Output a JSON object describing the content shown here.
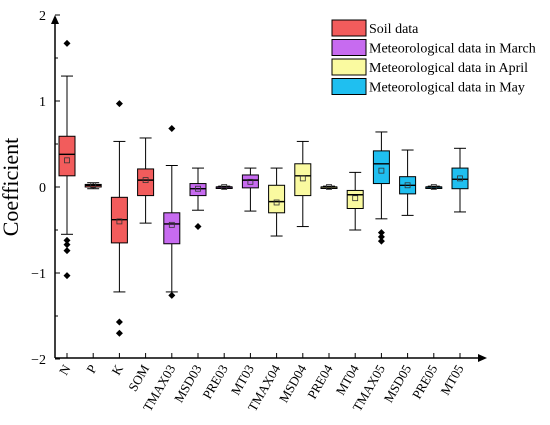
{
  "chart_data": {
    "type": "boxplot",
    "ylabel": "Coefficient",
    "xlabel": "",
    "ylim": [
      -2,
      2
    ],
    "yticks": [
      -2,
      -1,
      0,
      1,
      2
    ],
    "grid": false,
    "legend_position": "top-right",
    "legend": [
      {
        "label": "Soil data",
        "color": "#f25c5c"
      },
      {
        "label": "Meteorological data in March",
        "color": "#c76bf0"
      },
      {
        "label": "Meteorological data in April",
        "color": "#fafaa0"
      },
      {
        "label": "Meteorological data in May",
        "color": "#1fbff0"
      }
    ],
    "categories": [
      "N",
      "P",
      "K",
      "SOM",
      "TMAX03",
      "MSD03",
      "PRE03",
      "MT03",
      "TMAX04",
      "MSD04",
      "PRE04",
      "MT04",
      "TMAX05",
      "MSD05",
      "PRE05",
      "MT05"
    ],
    "boxes": [
      {
        "category": "N",
        "group": 0,
        "whisker_low": -0.55,
        "q1": 0.13,
        "median": 0.38,
        "q3": 0.59,
        "whisker_high": 1.29,
        "mean": 0.31,
        "outliers": [
          1.67,
          -0.62,
          -0.67,
          -0.74,
          -1.03
        ]
      },
      {
        "category": "P",
        "group": 0,
        "whisker_low": -0.02,
        "q1": 0.0,
        "median": 0.02,
        "q3": 0.03,
        "whisker_high": 0.05,
        "mean": 0.02,
        "outliers": []
      },
      {
        "category": "K",
        "group": 0,
        "whisker_low": -1.22,
        "q1": -0.65,
        "median": -0.38,
        "q3": -0.12,
        "whisker_high": 0.53,
        "mean": -0.4,
        "outliers": [
          0.97,
          -1.57,
          -1.7
        ]
      },
      {
        "category": "SOM",
        "group": 0,
        "whisker_low": -0.42,
        "q1": -0.1,
        "median": 0.08,
        "q3": 0.21,
        "whisker_high": 0.57,
        "mean": 0.08,
        "outliers": []
      },
      {
        "category": "TMAX03",
        "group": 1,
        "whisker_low": -1.22,
        "q1": -0.66,
        "median": -0.43,
        "q3": -0.3,
        "whisker_high": 0.25,
        "mean": -0.44,
        "outliers": [
          0.68,
          -1.26
        ]
      },
      {
        "category": "MSD03",
        "group": 1,
        "whisker_low": -0.27,
        "q1": -0.1,
        "median": -0.02,
        "q3": 0.04,
        "whisker_high": 0.22,
        "mean": -0.02,
        "outliers": [
          -0.46
        ]
      },
      {
        "category": "PRE03",
        "group": 1,
        "whisker_low": -0.01,
        "q1": -0.01,
        "median": 0.0,
        "q3": 0.0,
        "whisker_high": 0.01,
        "mean": 0.0,
        "outliers": []
      },
      {
        "category": "MT03",
        "group": 1,
        "whisker_low": -0.28,
        "q1": -0.01,
        "median": 0.08,
        "q3": 0.14,
        "whisker_high": 0.22,
        "mean": 0.06,
        "outliers": []
      },
      {
        "category": "TMAX04",
        "group": 2,
        "whisker_low": -0.57,
        "q1": -0.3,
        "median": -0.17,
        "q3": 0.02,
        "whisker_high": 0.22,
        "mean": -0.18,
        "outliers": []
      },
      {
        "category": "MSD04",
        "group": 2,
        "whisker_low": -0.46,
        "q1": -0.1,
        "median": 0.13,
        "q3": 0.27,
        "whisker_high": 0.53,
        "mean": 0.1,
        "outliers": []
      },
      {
        "category": "PRE04",
        "group": 2,
        "whisker_low": -0.01,
        "q1": -0.01,
        "median": 0.0,
        "q3": 0.0,
        "whisker_high": 0.01,
        "mean": 0.0,
        "outliers": []
      },
      {
        "category": "MT04",
        "group": 2,
        "whisker_low": -0.5,
        "q1": -0.25,
        "median": -0.09,
        "q3": -0.04,
        "whisker_high": 0.17,
        "mean": -0.13,
        "outliers": []
      },
      {
        "category": "TMAX05",
        "group": 3,
        "whisker_low": -0.37,
        "q1": 0.04,
        "median": 0.27,
        "q3": 0.42,
        "whisker_high": 0.64,
        "mean": 0.19,
        "outliers": [
          -0.53,
          -0.58,
          -0.63
        ]
      },
      {
        "category": "MSD05",
        "group": 3,
        "whisker_low": -0.33,
        "q1": -0.08,
        "median": 0.02,
        "q3": 0.12,
        "whisker_high": 0.43,
        "mean": 0.02,
        "outliers": []
      },
      {
        "category": "PRE05",
        "group": 3,
        "whisker_low": -0.01,
        "q1": -0.01,
        "median": 0.0,
        "q3": 0.0,
        "whisker_high": 0.01,
        "mean": 0.0,
        "outliers": []
      },
      {
        "category": "MT05",
        "group": 3,
        "whisker_low": -0.29,
        "q1": -0.02,
        "median": 0.09,
        "q3": 0.22,
        "whisker_high": 0.45,
        "mean": 0.1,
        "outliers": []
      }
    ]
  }
}
